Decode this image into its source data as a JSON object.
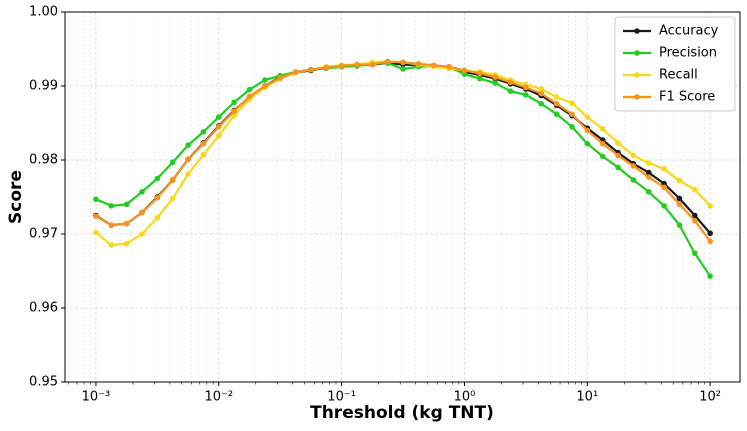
{
  "chart_data": {
    "type": "line",
    "xlabel": "Threshold (kg TNT)",
    "ylabel": "Score",
    "xscale": "log",
    "grid": true,
    "legend": "upper right",
    "xlim": [
      0.00056,
      175
    ],
    "ylim": [
      0.95,
      1.0
    ],
    "xticks": [
      {
        "value": 0.001,
        "label": "10⁻³"
      },
      {
        "value": 0.01,
        "label": "10⁻²"
      },
      {
        "value": 0.1,
        "label": "10⁻¹"
      },
      {
        "value": 1,
        "label": "10⁰"
      },
      {
        "value": 10,
        "label": "10¹"
      },
      {
        "value": 100,
        "label": "10²"
      }
    ],
    "yticks": [
      0.95,
      0.96,
      0.97,
      0.98,
      0.99,
      {
        "value": 1.0,
        "label": "1.00"
      }
    ],
    "x": [
      0.001,
      0.0013335,
      0.0017783,
      0.0023714,
      0.0031623,
      0.004217,
      0.0056234,
      0.0074989,
      0.01,
      0.013335,
      0.017783,
      0.023714,
      0.031623,
      0.04217,
      0.056234,
      0.074989,
      0.1,
      0.13335,
      0.17783,
      0.23714,
      0.31623,
      0.4217,
      0.56234,
      0.74989,
      1,
      1.3335,
      1.7783,
      2.3714,
      3.1623,
      4.217,
      5.6234,
      7.4989,
      10,
      13.335,
      17.783,
      23.714,
      31.623,
      42.17,
      56.234,
      74.989,
      100
    ],
    "series": [
      {
        "name": "Accuracy",
        "color": "#1a1a1a",
        "values": [
          0.9725,
          0.9712,
          0.9714,
          0.9729,
          0.975,
          0.9773,
          0.9801,
          0.9823,
          0.9846,
          0.9867,
          0.9885,
          0.99,
          0.9912,
          0.9918,
          0.9921,
          0.9925,
          0.9927,
          0.9928,
          0.9929,
          0.9931,
          0.9929,
          0.9928,
          0.9927,
          0.9924,
          0.9919,
          0.9915,
          0.991,
          0.9903,
          0.9896,
          0.9887,
          0.9874,
          0.986,
          0.9843,
          0.9827,
          0.981,
          0.9795,
          0.9783,
          0.9768,
          0.9748,
          0.9725,
          0.9701
        ]
      },
      {
        "name": "Precision",
        "color": "#22cc22",
        "values": [
          0.9747,
          0.9738,
          0.974,
          0.9757,
          0.9775,
          0.9797,
          0.982,
          0.9838,
          0.9858,
          0.9878,
          0.9895,
          0.9908,
          0.9914,
          0.9919,
          0.9922,
          0.9924,
          0.9926,
          0.9927,
          0.993,
          0.9931,
          0.9923,
          0.9926,
          0.9927,
          0.9926,
          0.9916,
          0.991,
          0.9904,
          0.9893,
          0.9888,
          0.9876,
          0.9862,
          0.9845,
          0.9822,
          0.9805,
          0.979,
          0.9773,
          0.9757,
          0.9738,
          0.9712,
          0.9674,
          0.9643
        ]
      },
      {
        "name": "Recall",
        "color": "#f8d81a",
        "values": [
          0.9702,
          0.9685,
          0.9687,
          0.97,
          0.9722,
          0.9748,
          0.9781,
          0.9807,
          0.9833,
          0.986,
          0.9882,
          0.9898,
          0.991,
          0.9918,
          0.9922,
          0.9926,
          0.9928,
          0.9929,
          0.9932,
          0.9933,
          0.9932,
          0.9929,
          0.9926,
          0.9924,
          0.9921,
          0.9919,
          0.9915,
          0.9908,
          0.9902,
          0.9896,
          0.9885,
          0.9877,
          0.9858,
          0.9842,
          0.9823,
          0.9806,
          0.9796,
          0.9788,
          0.9772,
          0.976,
          0.9738
        ]
      },
      {
        "name": "F1 Score",
        "color": "#f7931e",
        "values": [
          0.9724,
          0.9712,
          0.9714,
          0.9729,
          0.9749,
          0.9773,
          0.9801,
          0.9822,
          0.9845,
          0.9866,
          0.9886,
          0.99,
          0.9911,
          0.9919,
          0.9922,
          0.9925,
          0.9927,
          0.9929,
          0.9929,
          0.9933,
          0.9932,
          0.993,
          0.9928,
          0.9926,
          0.9921,
          0.9917,
          0.9912,
          0.9905,
          0.9898,
          0.989,
          0.9876,
          0.9862,
          0.984,
          0.9822,
          0.9806,
          0.9792,
          0.9777,
          0.9763,
          0.974,
          0.9718,
          0.969
        ]
      }
    ]
  }
}
